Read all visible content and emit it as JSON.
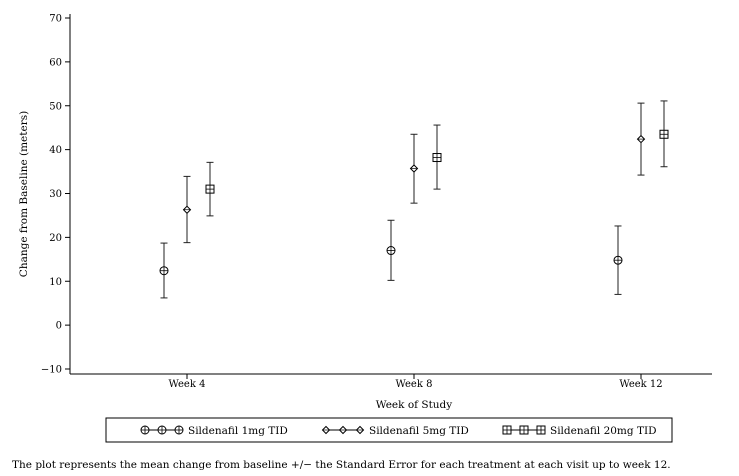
{
  "chart_data": {
    "type": "scatter",
    "title": "",
    "xlabel": "Week of Study",
    "ylabel": "Change from Baseline (meters)",
    "categories": [
      "Week 4",
      "Week 8",
      "Week 12"
    ],
    "ylim": [
      -10,
      70
    ],
    "yticks": [
      -10,
      0,
      10,
      20,
      30,
      40,
      50,
      60,
      70
    ],
    "ytick_labels": [
      "−10",
      "0",
      "10",
      "20",
      "30",
      "40",
      "50",
      "60",
      "70"
    ],
    "grid": false,
    "legend_position": "bottom",
    "series": [
      {
        "name": "Sildenafil 1mg TID",
        "marker": "circle-plus",
        "legend_label": "Sildenafil 1mg TID",
        "values": [
          12.4,
          17.0,
          14.8
        ],
        "lower": [
          6.2,
          10.2,
          7.0
        ],
        "upper": [
          18.7,
          23.9,
          22.6
        ]
      },
      {
        "name": "Sildenafil 5mg TID",
        "marker": "diamond",
        "legend_label": "Sildenafil 5mg TID",
        "values": [
          26.3,
          35.7,
          42.4
        ],
        "lower": [
          18.8,
          27.8,
          34.2
        ],
        "upper": [
          33.9,
          43.5,
          50.6
        ]
      },
      {
        "name": "Sildenafil 20mg TID",
        "marker": "square-plus",
        "legend_label": "Sildenafil 20mg TID",
        "values": [
          31.0,
          38.2,
          43.5
        ],
        "lower": [
          24.9,
          31.0,
          36.1
        ],
        "upper": [
          37.1,
          45.6,
          51.1
        ]
      }
    ]
  },
  "caption": "The plot represents the mean change from baseline +/− the Standard Error for each treatment at each visit up to week 12."
}
